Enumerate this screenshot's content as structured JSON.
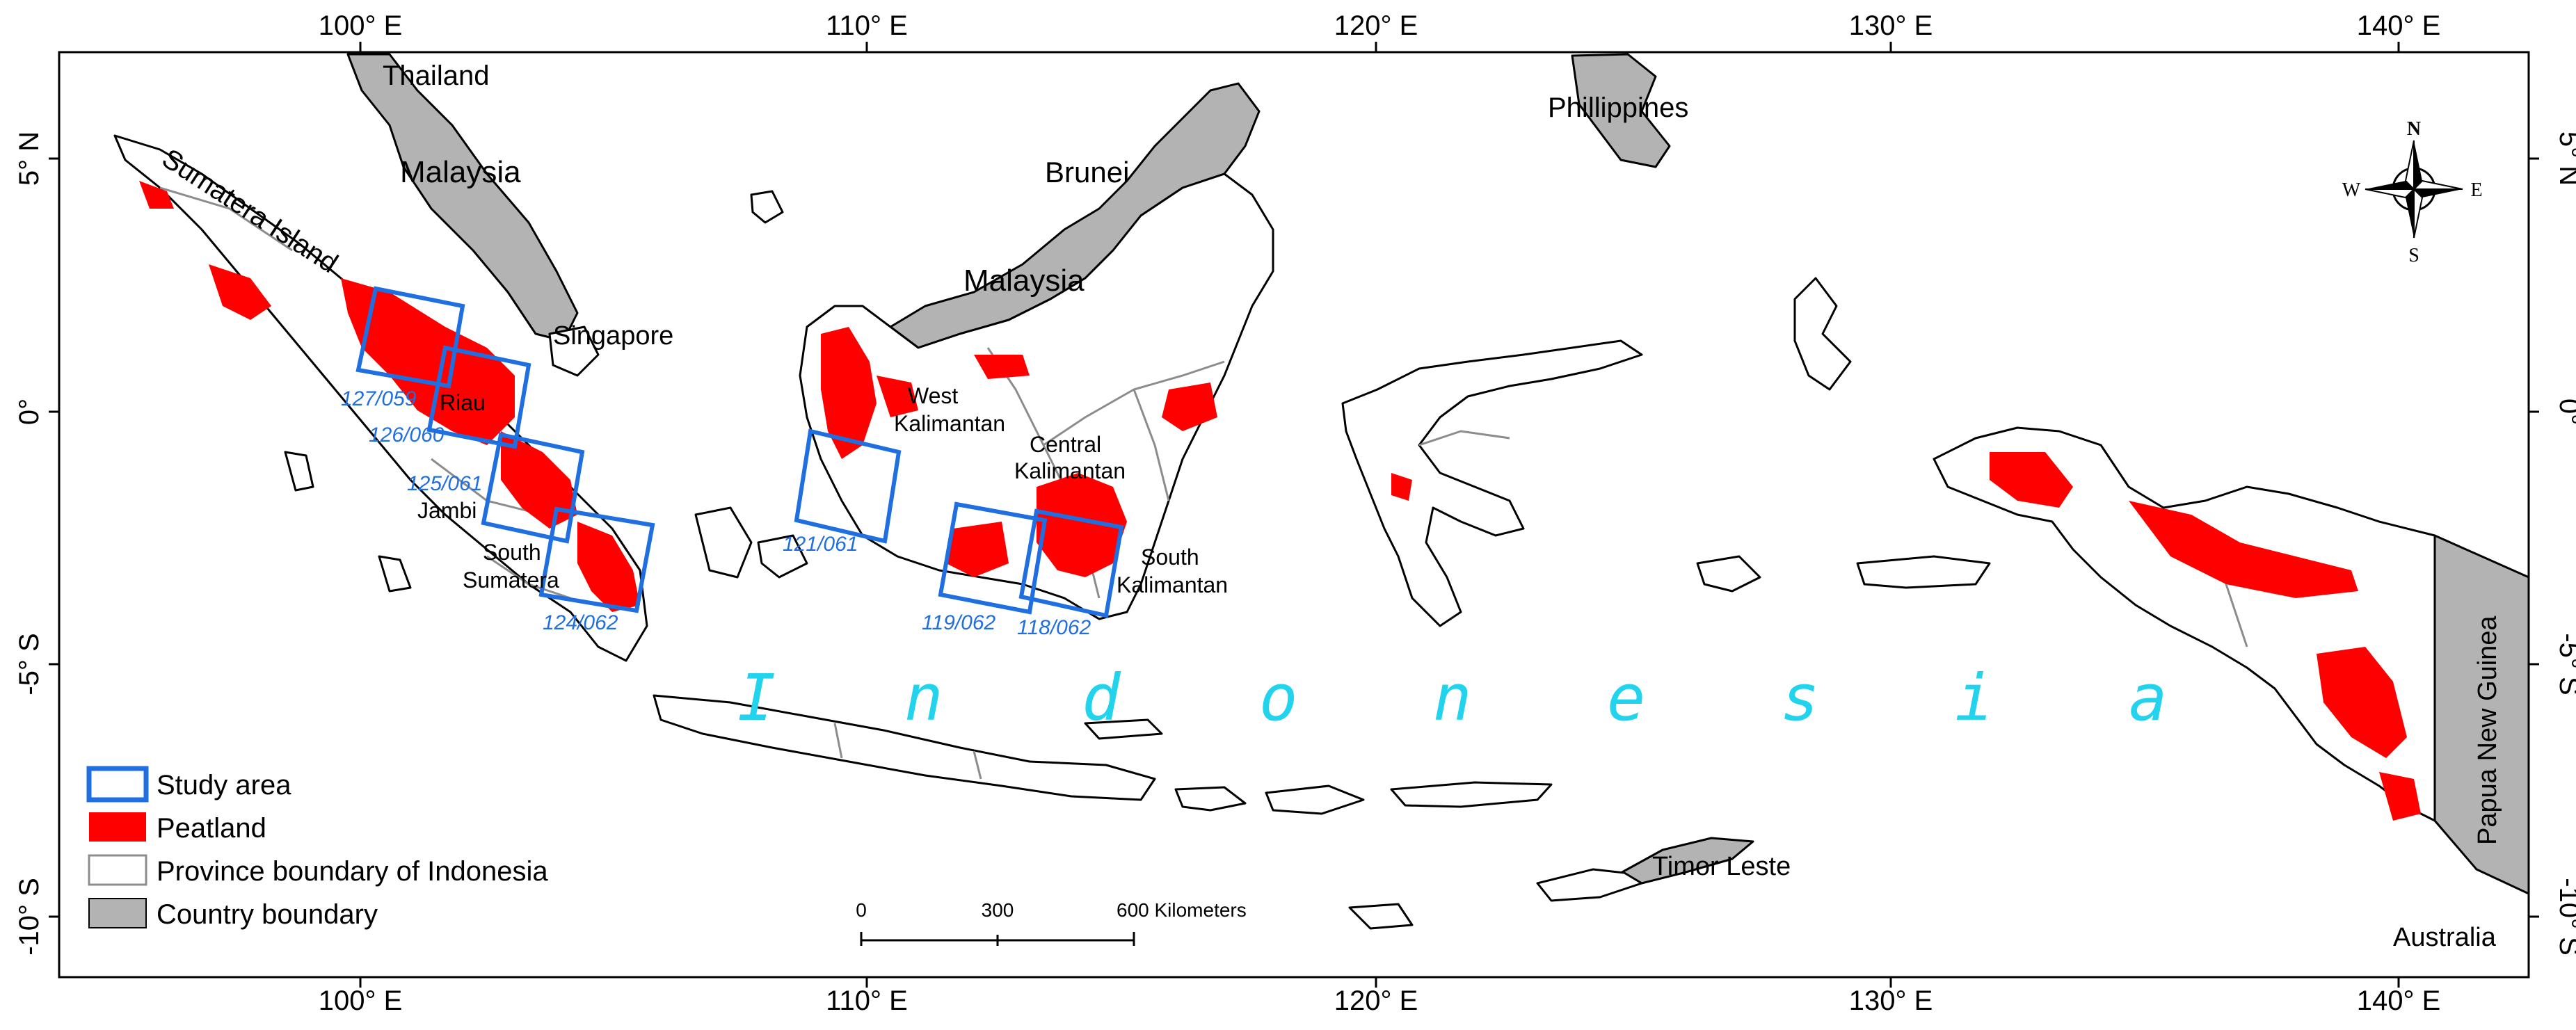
{
  "axes": {
    "x_ticks": [
      "100° E",
      "110° E",
      "120° E",
      "130° E",
      "140° E"
    ],
    "y_ticks": [
      "5° N",
      "0°",
      "-5° S",
      "-10° S"
    ]
  },
  "places": {
    "thailand": "Thailand",
    "malaysia_west": "Malaysia",
    "malaysia_east": "Malaysia",
    "brunei": "Brunei",
    "philippines": "Phillippines",
    "singapore": "Singapore",
    "sumatera_island": "Sumatera Island",
    "riau": "Riau",
    "jambi": "Jambi",
    "south_sumatera_1": "South",
    "south_sumatera_2": "Sumatera",
    "west_kalimantan_1": "West",
    "west_kalimantan_2": "Kalimantan",
    "central_kalimantan_1": "Central",
    "central_kalimantan_2": "Kalimantan",
    "south_kalimantan_1": "South",
    "south_kalimantan_2": "Kalimantan",
    "timor_leste": "Timor Leste",
    "papua_new_guinea": "Papua New Guinea",
    "australia": "Australia",
    "indonesia_letters": [
      "I",
      "n",
      "d",
      "o",
      "n",
      "e",
      "s",
      "i",
      "a"
    ]
  },
  "study_areas": [
    "127/059",
    "126/060",
    "125/061",
    "124/062",
    "121/061",
    "119/062",
    "118/062"
  ],
  "legend": {
    "study_area": "Study area",
    "peatland": "Peatland",
    "province": "Province boundary of Indonesia",
    "country": "Country boundary"
  },
  "scale_bar": {
    "labels": [
      "0",
      "300",
      "600 Kilometers"
    ]
  },
  "compass": {
    "n": "N",
    "s": "S",
    "e": "E",
    "w": "W"
  },
  "colors": {
    "peatland": "#ff0000",
    "study_area": "#1f6fe0",
    "country": "#b3b3b3",
    "province": "#8c8c8c",
    "indonesia_label": "#22d3ee"
  }
}
